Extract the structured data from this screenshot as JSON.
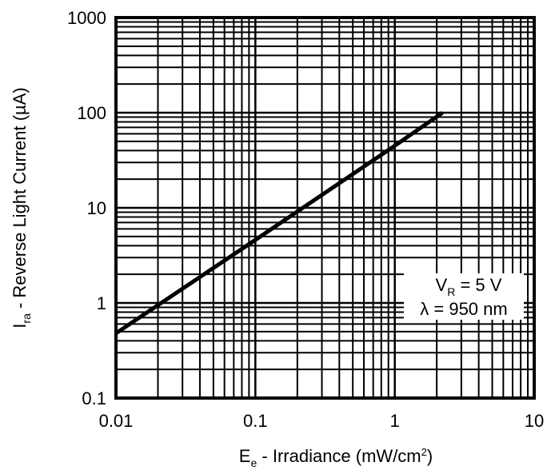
{
  "chart_data": {
    "type": "line",
    "scale": "log-log",
    "xlabel_main": "E",
    "xlabel_sub": "e",
    "xlabel_rest": " - Irradiance (mW/cm",
    "xlabel_sup": "2",
    "xlabel_end": ")",
    "ylabel_main": "I",
    "ylabel_sub": "ra",
    "ylabel_rest": " - Reverse Light Current (µA)",
    "xlim": [
      0.01,
      10
    ],
    "ylim": [
      0.1,
      1000
    ],
    "x_ticks": [
      "0.01",
      "0.1",
      "1",
      "10"
    ],
    "y_ticks": [
      "0.1",
      "1",
      "10",
      "100",
      "1000"
    ],
    "grid": true,
    "series": [
      {
        "name": "Ira",
        "x": [
          0.01,
          0.1,
          1,
          2.2
        ],
        "y": [
          0.48,
          4.6,
          45,
          100
        ]
      }
    ],
    "annotation": {
      "line1_main": "V",
      "line1_sub": "R",
      "line1_rest": " = 5 V",
      "line2": "λ = 950 nm"
    }
  }
}
